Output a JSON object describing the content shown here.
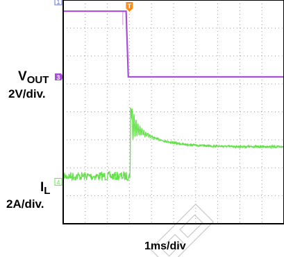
{
  "chart_data": {
    "type": "line",
    "title": "",
    "grid": true,
    "x_divisions": 10,
    "y_divisions": 8,
    "time_scale": "1ms/div",
    "trigger": {
      "label": "T",
      "color": "#ff8c1a",
      "time_div": 3.0
    },
    "channels": [
      {
        "id": "3",
        "name_main": "V",
        "name_sub": "OUT",
        "scale": "2V/div.",
        "color": "#a64dd9",
        "ref_level_div": 2.75,
        "points": [
          [
            0.0,
            0.4
          ],
          [
            2.85,
            0.4
          ],
          [
            2.95,
            2.75
          ],
          [
            10.0,
            2.75
          ]
        ],
        "glitches": [
          {
            "t": 2.7,
            "from": 0.4,
            "to": 0.9
          }
        ]
      },
      {
        "id": "4",
        "name_main": "I",
        "name_sub": "L",
        "scale": "2A/div.",
        "color": "#66e04d",
        "ref_level_div": 6.5,
        "baseline_div": 6.3,
        "steady_div": 5.25,
        "spike_div": 3.85,
        "ring_time": 3.05
      }
    ],
    "channel_markers": [
      {
        "id": "1",
        "color": "#5b79c9",
        "level_div": 0.05
      }
    ]
  }
}
